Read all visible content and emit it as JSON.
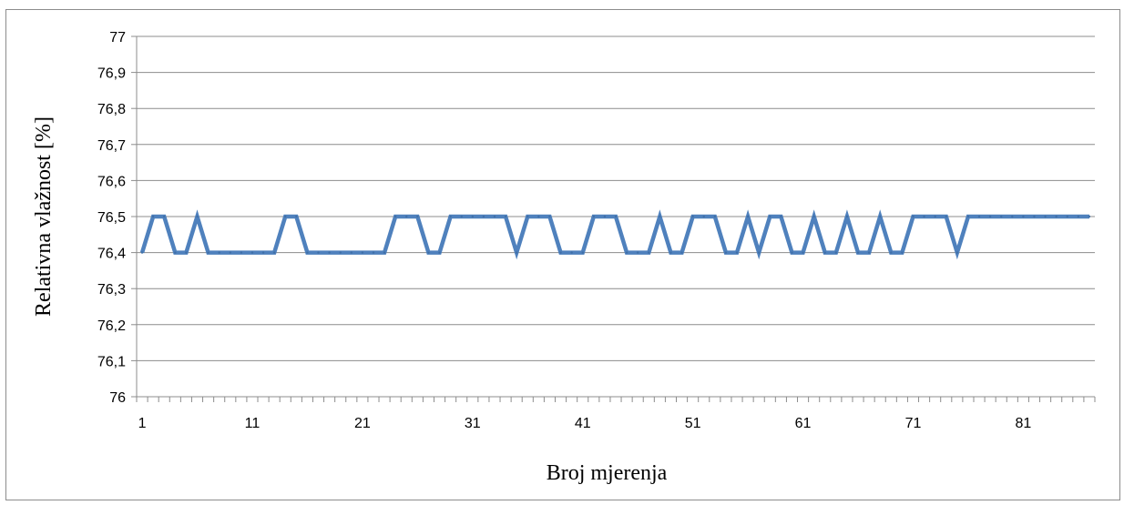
{
  "chart_data": {
    "type": "line",
    "xlabel": "Broj mjerenja",
    "ylabel": "Relativna  vlažnost [%]",
    "ylim": [
      76,
      77
    ],
    "y_ticks": [
      "76",
      "76,1",
      "76,2",
      "76,3",
      "76,4",
      "76,5",
      "76,6",
      "76,7",
      "76,8",
      "76,9",
      "77"
    ],
    "x_ticks": [
      "1",
      "11",
      "21",
      "31",
      "41",
      "51",
      "61",
      "71",
      "81"
    ],
    "x": [
      1,
      2,
      3,
      4,
      5,
      6,
      7,
      8,
      9,
      10,
      11,
      12,
      13,
      14,
      15,
      16,
      17,
      18,
      19,
      20,
      21,
      22,
      23,
      24,
      25,
      26,
      27,
      28,
      29,
      30,
      31,
      32,
      33,
      34,
      35,
      36,
      37,
      38,
      39,
      40,
      41,
      42,
      43,
      44,
      45,
      46,
      47,
      48,
      49,
      50,
      51,
      52,
      53,
      54,
      55,
      56,
      57,
      58,
      59,
      60,
      61,
      62,
      63,
      64,
      65,
      66,
      67,
      68,
      69,
      70,
      71,
      72,
      73,
      74,
      75,
      76,
      77,
      78,
      79,
      80,
      81,
      82,
      83,
      84,
      85,
      86,
      87
    ],
    "series": [
      {
        "name": "",
        "color": "#4f81bd",
        "values": [
          76.4,
          76.5,
          76.5,
          76.4,
          76.4,
          76.5,
          76.4,
          76.4,
          76.4,
          76.4,
          76.4,
          76.4,
          76.4,
          76.5,
          76.5,
          76.4,
          76.4,
          76.4,
          76.4,
          76.4,
          76.4,
          76.4,
          76.4,
          76.5,
          76.5,
          76.5,
          76.4,
          76.4,
          76.5,
          76.5,
          76.5,
          76.5,
          76.5,
          76.5,
          76.4,
          76.5,
          76.5,
          76.5,
          76.4,
          76.4,
          76.4,
          76.5,
          76.5,
          76.5,
          76.4,
          76.4,
          76.4,
          76.5,
          76.4,
          76.4,
          76.5,
          76.5,
          76.5,
          76.4,
          76.4,
          76.5,
          76.4,
          76.5,
          76.5,
          76.4,
          76.4,
          76.5,
          76.4,
          76.4,
          76.5,
          76.4,
          76.4,
          76.5,
          76.4,
          76.4,
          76.5,
          76.5,
          76.5,
          76.5,
          76.4,
          76.5,
          76.5,
          76.5,
          76.5,
          76.5,
          76.5,
          76.5,
          76.5,
          76.5,
          76.5,
          76.5,
          76.5
        ]
      }
    ],
    "grid": true,
    "legend": "none"
  }
}
